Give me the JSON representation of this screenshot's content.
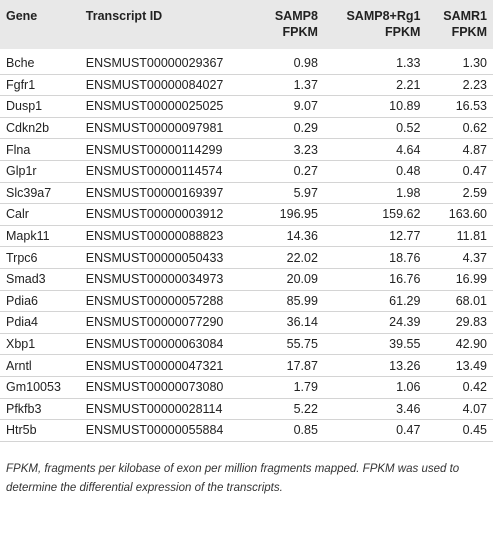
{
  "table": {
    "columns": [
      [
        "Gene"
      ],
      [
        "Transcript ID"
      ],
      [
        "SAMP8",
        "FPKM"
      ],
      [
        "SAMP8+Rg1",
        "FPKM"
      ],
      [
        "SAMR1",
        "FPKM"
      ]
    ],
    "rows": [
      [
        "Bche",
        "ENSMUST00000029367",
        "0.98",
        "1.33",
        "1.30"
      ],
      [
        "Fgfr1",
        "ENSMUST00000084027",
        "1.37",
        "2.21",
        "2.23"
      ],
      [
        "Dusp1",
        "ENSMUST00000025025",
        "9.07",
        "10.89",
        "16.53"
      ],
      [
        "Cdkn2b",
        "ENSMUST00000097981",
        "0.29",
        "0.52",
        "0.62"
      ],
      [
        "Flna",
        "ENSMUST00000114299",
        "3.23",
        "4.64",
        "4.87"
      ],
      [
        "Glp1r",
        "ENSMUST00000114574",
        "0.27",
        "0.48",
        "0.47"
      ],
      [
        "Slc39a7",
        "ENSMUST00000169397",
        "5.97",
        "1.98",
        "2.59"
      ],
      [
        "Calr",
        "ENSMUST00000003912",
        "196.95",
        "159.62",
        "163.60"
      ],
      [
        "Mapk11",
        "ENSMUST00000088823",
        "14.36",
        "12.77",
        "11.81"
      ],
      [
        "Trpc6",
        "ENSMUST00000050433",
        "22.02",
        "18.76",
        "4.37"
      ],
      [
        "Smad3",
        "ENSMUST00000034973",
        "20.09",
        "16.76",
        "16.99"
      ],
      [
        "Pdia6",
        "ENSMUST00000057288",
        "85.99",
        "61.29",
        "68.01"
      ],
      [
        "Pdia4",
        "ENSMUST00000077290",
        "36.14",
        "24.39",
        "29.83"
      ],
      [
        "Xbp1",
        "ENSMUST00000063084",
        "55.75",
        "39.55",
        "42.90"
      ],
      [
        "Arntl",
        "ENSMUST00000047321",
        "17.87",
        "13.26",
        "13.49"
      ],
      [
        "Gm10053",
        "ENSMUST00000073080",
        "1.79",
        "1.06",
        "0.42"
      ],
      [
        "Pfkfb3",
        "ENSMUST00000028114",
        "5.22",
        "3.46",
        "4.07"
      ],
      [
        "Htr5b",
        "ENSMUST00000055884",
        "0.85",
        "0.47",
        "0.45"
      ]
    ]
  },
  "footnote": "FPKM, fragments per kilobase of exon per million fragments mapped. FPKM was used to determine the differential expression of the transcripts."
}
